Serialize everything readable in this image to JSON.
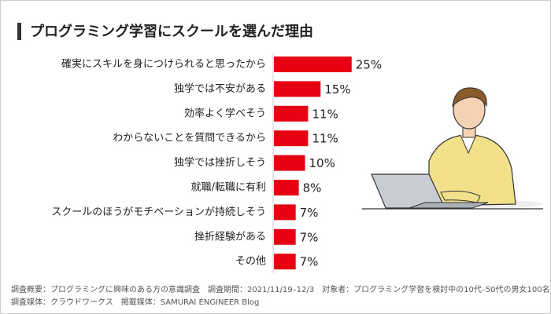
{
  "chart_data": {
    "type": "hbar",
    "title": "プログラミング学習にスクールを選んだ理由",
    "categories": [
      "確実にスキルを身につけられると思ったから",
      "独学では不安がある",
      "効率よく学べそう",
      "わからないことを質問できるから",
      "独学では挫折しそう",
      "就職/転職に有利",
      "スクールのほうがモチベーションが持続しそう",
      "挫折経験がある",
      "その他"
    ],
    "values": [
      25,
      15,
      11,
      11,
      10,
      8,
      7,
      7,
      7
    ],
    "value_labels": [
      "25%",
      "15%",
      "11%",
      "11%",
      "10%",
      "8%",
      "7%",
      "7%",
      "7%"
    ],
    "color": "#e60012",
    "notes": [
      "調査概要：プログラミングに興味のある方の意識調査　調査期間：2021/11/19–12/3　対象者：プログラミング学習を検討中の10代–50代の男女100名",
      "調査媒体：クラウドワークス　掲載媒体：SAMURAI ENGINEER Blog"
    ]
  }
}
